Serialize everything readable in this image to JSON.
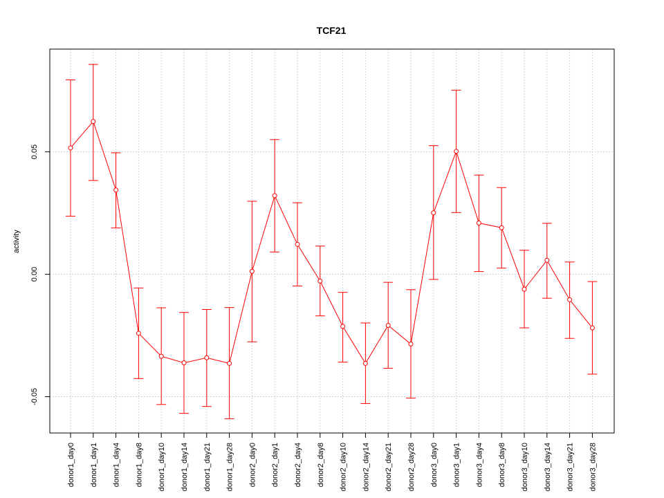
{
  "chart_data": {
    "type": "line",
    "title": "TCF21",
    "xlabel": "",
    "ylabel": "activity",
    "ylim": [
      -0.065,
      0.092
    ],
    "yticks": [
      -0.05,
      0.0,
      0.05
    ],
    "ytick_labels": [
      "-0.05",
      "0.00",
      "0.05"
    ],
    "grid": true,
    "series_color": "#ff0000",
    "grid_color": "#d3d3d3",
    "categories": [
      "donor1_day0",
      "donor1_day1",
      "donor1_day4",
      "donor1_day8",
      "donor1_day10",
      "donor1_day14",
      "donor1_day21",
      "donor1_day28",
      "donor2_day0",
      "donor2_day1",
      "donor2_day4",
      "donor2_day8",
      "donor2_day10",
      "donor2_day14",
      "donor2_day21",
      "donor2_day28",
      "donor3_day0",
      "donor3_day1",
      "donor3_day4",
      "donor3_day8",
      "donor3_day10",
      "donor3_day14",
      "donor3_day21",
      "donor3_day28"
    ],
    "values": [
      0.0516,
      0.0624,
      0.0344,
      -0.0241,
      -0.0335,
      -0.0362,
      -0.0341,
      -0.0364,
      0.0012,
      0.0321,
      0.0122,
      -0.0028,
      -0.0213,
      -0.0364,
      -0.0209,
      -0.0285,
      0.0251,
      0.0502,
      0.0209,
      0.019,
      -0.0061,
      0.0057,
      -0.0104,
      -0.0219
    ],
    "upper": [
      0.0794,
      0.0857,
      0.0496,
      -0.0056,
      -0.0137,
      -0.0156,
      -0.0144,
      -0.0136,
      0.0298,
      0.055,
      0.0292,
      0.0115,
      -0.0074,
      -0.0199,
      -0.0033,
      -0.0063,
      0.0525,
      0.0752,
      0.0405,
      0.0354,
      0.0098,
      0.0208,
      0.005,
      -0.003
    ],
    "lower": [
      0.0237,
      0.0383,
      0.0189,
      -0.0426,
      -0.0532,
      -0.0568,
      -0.054,
      -0.059,
      -0.0276,
      0.0091,
      -0.0048,
      -0.017,
      -0.0359,
      -0.0528,
      -0.0384,
      -0.0506,
      -0.0021,
      0.0252,
      0.0011,
      0.0025,
      -0.0219,
      -0.0098,
      -0.0262,
      -0.0408
    ]
  }
}
